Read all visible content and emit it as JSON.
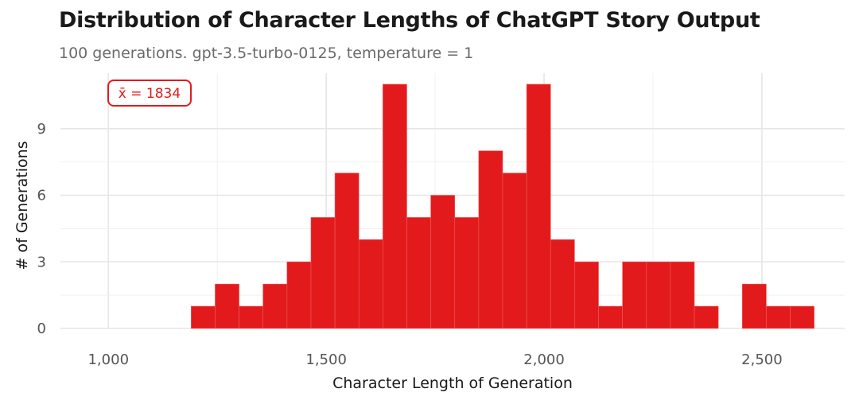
{
  "chart_data": {
    "type": "bar",
    "title": "Distribution of Character Lengths of ChatGPT Story Output",
    "subtitle": "100 generations. gpt-3.5-turbo-0125, temperature = 1",
    "xlabel": "Character Length of Generation",
    "ylabel": "# of Generations",
    "xlim": [
      890,
      2690
    ],
    "ylim": [
      0,
      11.5
    ],
    "x_ticks": [
      1000,
      1500,
      2000,
      2500
    ],
    "x_tick_labels": [
      "1,000",
      "1,500",
      "2,000",
      "2,500"
    ],
    "y_ticks": [
      0,
      3,
      6,
      9
    ],
    "y_tick_labels": [
      "0",
      "3",
      "6",
      "9"
    ],
    "grid": true,
    "bin_width": 55,
    "bins": [
      {
        "start": 1190,
        "count": 1
      },
      {
        "start": 1245,
        "count": 2
      },
      {
        "start": 1300,
        "count": 1
      },
      {
        "start": 1355,
        "count": 2
      },
      {
        "start": 1410,
        "count": 3
      },
      {
        "start": 1465,
        "count": 5
      },
      {
        "start": 1520,
        "count": 7
      },
      {
        "start": 1575,
        "count": 4
      },
      {
        "start": 1630,
        "count": 11
      },
      {
        "start": 1685,
        "count": 5
      },
      {
        "start": 1740,
        "count": 6
      },
      {
        "start": 1795,
        "count": 5
      },
      {
        "start": 1850,
        "count": 8
      },
      {
        "start": 1905,
        "count": 7
      },
      {
        "start": 1960,
        "count": 11
      },
      {
        "start": 2015,
        "count": 4
      },
      {
        "start": 2070,
        "count": 3
      },
      {
        "start": 2125,
        "count": 1
      },
      {
        "start": 2180,
        "count": 3
      },
      {
        "start": 2235,
        "count": 3
      },
      {
        "start": 2290,
        "count": 3
      },
      {
        "start": 2345,
        "count": 1
      },
      {
        "start": 2400,
        "count": 0
      },
      {
        "start": 2455,
        "count": 2
      },
      {
        "start": 2510,
        "count": 1
      },
      {
        "start": 2565,
        "count": 1
      }
    ],
    "bar_color": "#e31a1c",
    "annotation": {
      "text": "x̄ = 1834",
      "color": "#e31a1c"
    }
  }
}
